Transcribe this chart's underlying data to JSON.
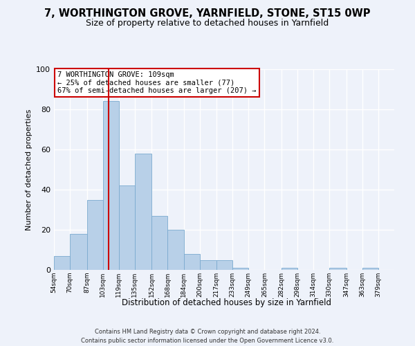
{
  "title": "7, WORTHINGTON GROVE, YARNFIELD, STONE, ST15 0WP",
  "subtitle": "Size of property relative to detached houses in Yarnfield",
  "xlabel": "Distribution of detached houses by size in Yarnfield",
  "ylabel": "Number of detached properties",
  "bin_edges": [
    54,
    70,
    87,
    103,
    119,
    135,
    152,
    168,
    184,
    200,
    217,
    233,
    249,
    265,
    282,
    298,
    314,
    330,
    347,
    363,
    379,
    395
  ],
  "bin_labels": [
    "54sqm",
    "70sqm",
    "87sqm",
    "103sqm",
    "119sqm",
    "135sqm",
    "152sqm",
    "168sqm",
    "184sqm",
    "200sqm",
    "217sqm",
    "233sqm",
    "249sqm",
    "265sqm",
    "282sqm",
    "298sqm",
    "314sqm",
    "330sqm",
    "347sqm",
    "363sqm",
    "379sqm"
  ],
  "counts": [
    7,
    18,
    35,
    84,
    42,
    58,
    27,
    20,
    8,
    5,
    5,
    1,
    0,
    0,
    1,
    0,
    0,
    1,
    0,
    1,
    0
  ],
  "bar_color": "#b8d0e8",
  "bar_edge_color": "#7aaacf",
  "vline_x": 109,
  "vline_color": "#cc0000",
  "ylim": [
    0,
    100
  ],
  "yticks": [
    0,
    20,
    40,
    60,
    80,
    100
  ],
  "annotation_text": "7 WORTHINGTON GROVE: 109sqm\n← 25% of detached houses are smaller (77)\n67% of semi-detached houses are larger (207) →",
  "annotation_box_edge_color": "#cc0000",
  "footer_line1": "Contains HM Land Registry data © Crown copyright and database right 2024.",
  "footer_line2": "Contains public sector information licensed under the Open Government Licence v3.0.",
  "background_color": "#eef2fa",
  "plot_bg_color": "#eef2fa",
  "grid_color": "#ffffff",
  "title_fontsize": 10.5,
  "subtitle_fontsize": 9
}
